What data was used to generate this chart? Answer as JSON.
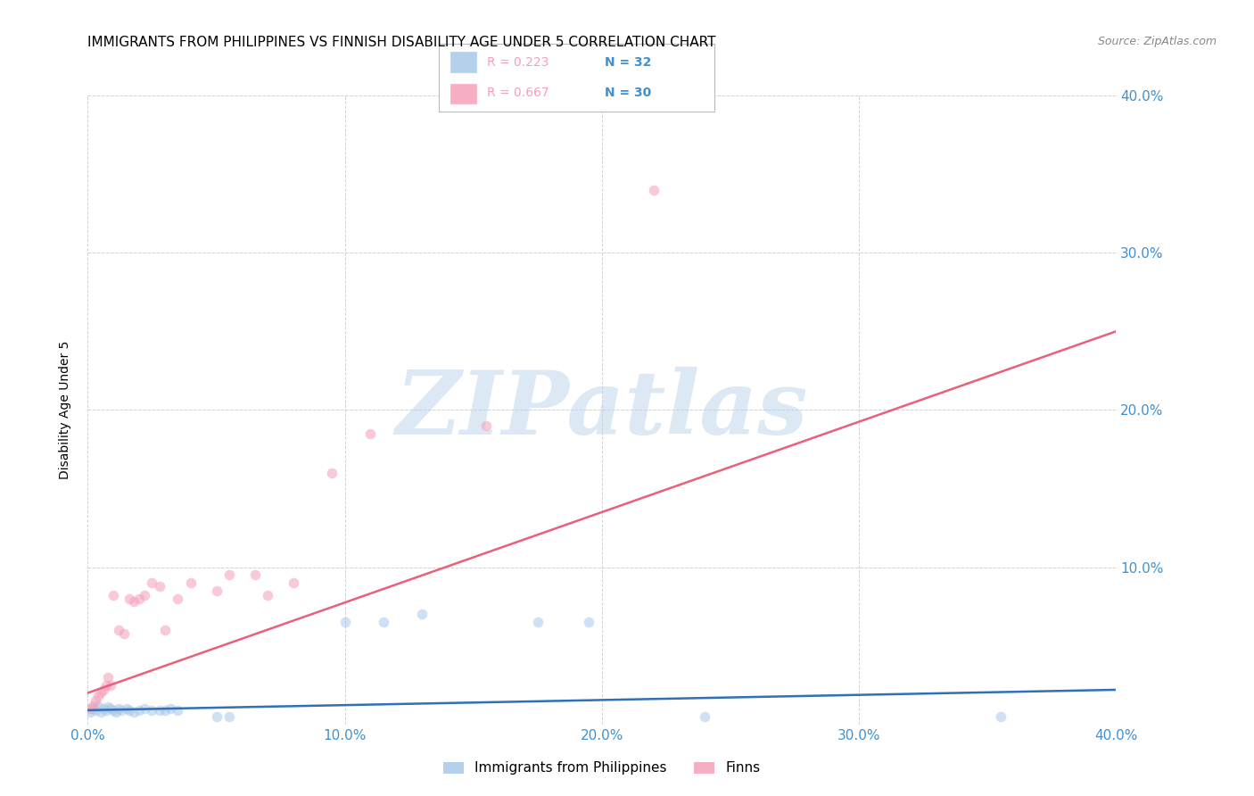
{
  "title": "IMMIGRANTS FROM PHILIPPINES VS FINNISH DISABILITY AGE UNDER 5 CORRELATION CHART",
  "source": "Source: ZipAtlas.com",
  "ylabel": "Disability Age Under 5",
  "xlim": [
    0.0,
    0.4
  ],
  "ylim": [
    0.0,
    0.4
  ],
  "xticks": [
    0.0,
    0.1,
    0.2,
    0.3,
    0.4
  ],
  "yticks": [
    0.1,
    0.2,
    0.3,
    0.4
  ],
  "xtick_labels": [
    "0.0%",
    "10.0%",
    "20.0%",
    "30.0%",
    "40.0%"
  ],
  "ytick_labels_right": [
    "10.0%",
    "20.0%",
    "30.0%",
    "40.0%"
  ],
  "legend_label1": "Immigrants from Philippines",
  "legend_label2": "Finns",
  "R1": "0.223",
  "N1": "32",
  "R2": "0.667",
  "N2": "30",
  "color_blue": "#a8c8e8",
  "color_pink": "#f4a0b8",
  "line_color_blue": "#3070b8",
  "line_color_pink": "#e8607a",
  "tick_color": "#4090d0",
  "watermark_text": "ZIPatlas",
  "watermark_color": "#dce8f4",
  "title_fontsize": 11,
  "axis_label_fontsize": 10,
  "tick_fontsize": 11,
  "scatter_size": 70,
  "scatter_alpha": 0.55,
  "philippines_x": [
    0.001,
    0.002,
    0.003,
    0.004,
    0.005,
    0.006,
    0.007,
    0.008,
    0.009,
    0.01,
    0.011,
    0.012,
    0.013,
    0.015,
    0.016,
    0.018,
    0.02,
    0.022,
    0.025,
    0.028,
    0.03,
    0.032,
    0.035,
    0.05,
    0.055,
    0.1,
    0.115,
    0.13,
    0.175,
    0.195,
    0.24,
    0.355
  ],
  "philippines_y": [
    0.008,
    0.01,
    0.009,
    0.012,
    0.008,
    0.01,
    0.009,
    0.011,
    0.01,
    0.009,
    0.008,
    0.01,
    0.009,
    0.01,
    0.009,
    0.008,
    0.009,
    0.01,
    0.009,
    0.009,
    0.009,
    0.01,
    0.009,
    0.005,
    0.005,
    0.065,
    0.065,
    0.07,
    0.065,
    0.065,
    0.005,
    0.005
  ],
  "finns_x": [
    0.001,
    0.002,
    0.003,
    0.004,
    0.005,
    0.006,
    0.007,
    0.008,
    0.009,
    0.01,
    0.012,
    0.014,
    0.016,
    0.018,
    0.02,
    0.022,
    0.025,
    0.028,
    0.03,
    0.035,
    0.04,
    0.05,
    0.055,
    0.065,
    0.07,
    0.08,
    0.095,
    0.11,
    0.155,
    0.22
  ],
  "finns_y": [
    0.01,
    0.012,
    0.015,
    0.018,
    0.02,
    0.022,
    0.025,
    0.03,
    0.025,
    0.082,
    0.06,
    0.058,
    0.08,
    0.078,
    0.08,
    0.082,
    0.09,
    0.088,
    0.06,
    0.08,
    0.09,
    0.085,
    0.095,
    0.095,
    0.082,
    0.09,
    0.16,
    0.185,
    0.19,
    0.34
  ],
  "blue_line_x": [
    0.0,
    0.4
  ],
  "blue_line_y": [
    0.009,
    0.022
  ],
  "pink_line_x": [
    0.0,
    0.4
  ],
  "pink_line_y": [
    0.02,
    0.25
  ]
}
